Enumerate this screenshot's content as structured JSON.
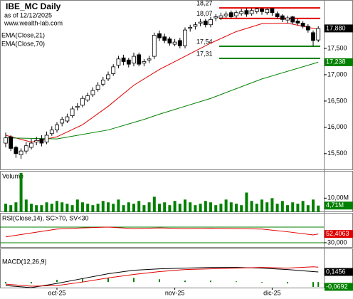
{
  "chart_data": [
    {
      "type": "candlestick",
      "title": "IBE_MC Daily",
      "subtitle": "as of 12/12/2025",
      "source": "www.wealth-lab.com",
      "open": [
        15.7,
        15.82,
        15.62,
        15.48,
        15.55,
        15.62,
        15.72,
        15.78,
        15.72,
        15.88,
        15.95,
        16.08,
        16.12,
        16.22,
        16.38,
        16.42,
        16.52,
        16.62,
        16.72,
        16.82,
        16.92,
        17.02,
        17.18,
        17.32,
        17.28,
        17.22,
        17.38,
        17.22,
        17.28,
        17.35,
        17.78,
        17.72,
        17.68,
        17.58,
        17.65,
        17.55,
        17.88,
        17.92,
        17.98,
        18.02,
        17.95,
        18.08,
        18.08,
        18.12,
        18.18,
        18.12,
        18.16,
        18.22,
        18.16,
        18.2,
        18.25,
        18.18,
        18.26,
        18.16,
        18.12,
        18.04,
        18.1,
        18.02,
        17.98,
        17.92,
        17.8,
        17.66
      ],
      "high": [
        15.9,
        15.85,
        15.65,
        15.6,
        15.72,
        15.78,
        15.82,
        15.85,
        15.92,
        16.02,
        16.1,
        16.2,
        16.26,
        16.4,
        16.46,
        16.6,
        16.66,
        16.76,
        16.86,
        16.96,
        17.06,
        17.2,
        17.36,
        17.38,
        17.32,
        17.42,
        17.42,
        17.3,
        17.36,
        17.8,
        17.84,
        17.78,
        17.72,
        17.68,
        17.7,
        17.9,
        17.95,
        18.0,
        18.06,
        18.06,
        18.1,
        18.15,
        18.18,
        18.2,
        18.22,
        18.22,
        18.25,
        18.27,
        18.26,
        18.27,
        18.27,
        18.26,
        18.27,
        18.2,
        18.15,
        18.12,
        18.12,
        18.06,
        18.02,
        17.96,
        17.84,
        17.92
      ],
      "low": [
        15.62,
        15.55,
        15.42,
        15.4,
        15.5,
        15.58,
        15.66,
        15.64,
        15.68,
        15.84,
        15.9,
        16.02,
        16.08,
        16.18,
        16.32,
        16.38,
        16.48,
        16.58,
        16.68,
        16.78,
        16.88,
        16.98,
        17.12,
        17.18,
        17.14,
        17.16,
        17.16,
        17.16,
        17.22,
        17.3,
        17.64,
        17.6,
        17.55,
        17.54,
        17.5,
        17.5,
        17.82,
        17.86,
        17.92,
        17.9,
        17.9,
        18.02,
        18.04,
        18.08,
        18.06,
        18.08,
        18.12,
        18.1,
        18.12,
        18.16,
        18.14,
        18.14,
        18.12,
        18.06,
        18.0,
        17.98,
        17.96,
        17.94,
        17.88,
        17.8,
        17.54,
        17.62
      ],
      "close": [
        15.8,
        15.6,
        15.5,
        15.55,
        15.65,
        15.7,
        15.75,
        15.7,
        15.85,
        15.95,
        16.05,
        16.15,
        16.2,
        16.35,
        16.4,
        16.55,
        16.6,
        16.7,
        16.8,
        16.9,
        17.0,
        17.15,
        17.3,
        17.25,
        17.2,
        17.35,
        17.2,
        17.25,
        17.3,
        17.75,
        17.7,
        17.65,
        17.6,
        17.62,
        17.55,
        17.85,
        17.9,
        17.95,
        18.0,
        17.95,
        18.05,
        18.1,
        18.12,
        18.15,
        18.1,
        18.18,
        18.2,
        18.15,
        18.22,
        18.25,
        18.2,
        18.24,
        18.18,
        18.1,
        18.05,
        18.08,
        18.0,
        17.98,
        17.92,
        17.85,
        17.65,
        17.88
      ],
      "xlim": [
        -1.11,
        62.08
      ],
      "xticks": [
        {
          "value": 10,
          "label": "oct-25"
        },
        {
          "value": 33,
          "label": "nov-25"
        },
        {
          "value": 52,
          "label": "dic-25"
        }
      ],
      "ylim": [
        15.2,
        18.42
      ],
      "yticks": [
        {
          "value": 15.5,
          "label": "15,500"
        },
        {
          "value": 16,
          "label": "16,000"
        },
        {
          "value": 16.5,
          "label": "16,500"
        },
        {
          "value": 17,
          "label": "17,000"
        },
        {
          "value": 17.5,
          "label": "17,500"
        }
      ],
      "series": [
        {
          "name": "EMA(Close,21)",
          "color": "#e00000",
          "x": [
            0,
            5,
            10,
            15,
            20,
            25,
            30,
            35,
            40,
            45,
            50,
            55,
            60,
            61
          ],
          "values": [
            15.85,
            15.72,
            15.82,
            16.05,
            16.4,
            16.8,
            17.1,
            17.35,
            17.6,
            17.82,
            17.97,
            17.98,
            17.88,
            17.87
          ]
        },
        {
          "name": "EMA(Close,70)",
          "color": "#008000",
          "x": [
            0,
            10,
            20,
            27,
            30,
            40,
            50,
            61
          ],
          "values": [
            15.8,
            15.78,
            15.95,
            16.15,
            16.25,
            16.55,
            16.92,
            17.238
          ]
        }
      ],
      "levels": [
        {
          "value": 18.27,
          "label": "18,27",
          "color": "#e00000"
        },
        {
          "value": 18.07,
          "label": "18,07",
          "color": "#e00000"
        },
        {
          "value": 17.54,
          "label": "17,54",
          "color": "#008000"
        },
        {
          "value": 17.31,
          "label": "17,31",
          "color": "#008000"
        }
      ],
      "last_labels": [
        {
          "value": 17.88,
          "label": "17,880",
          "color": "#000000"
        },
        {
          "value": 17.238,
          "label": "17,238",
          "color": "#008000"
        }
      ]
    },
    {
      "type": "bar",
      "title": "Volume",
      "color": "#008000",
      "values": [
        6,
        5,
        7,
        28,
        9,
        6,
        5,
        5,
        7,
        6,
        8,
        7,
        6,
        5,
        9,
        7,
        6,
        5,
        6,
        8,
        7,
        6,
        9,
        5,
        7,
        6,
        8,
        5,
        7,
        11,
        6,
        7,
        5,
        8,
        6,
        9,
        7,
        5,
        6,
        8,
        7,
        5,
        6,
        9,
        7,
        6,
        5,
        14,
        8,
        6,
        9,
        7,
        10,
        6,
        8,
        5,
        7,
        6,
        8,
        5,
        9,
        4.71
      ],
      "ylim": [
        0,
        29
      ],
      "yticks": [
        {
          "value": 10,
          "label": "10,00M"
        }
      ],
      "last_labels": [
        {
          "value": 4.71,
          "label": "4,71M",
          "color": "#008000"
        }
      ]
    },
    {
      "type": "line",
      "title": "RSI(Close,14), SC>70, SV<30",
      "series": [
        {
          "color": "#e00000",
          "x": [
            0,
            5,
            10,
            15,
            20,
            25,
            30,
            35,
            40,
            45,
            50,
            55,
            60,
            61
          ],
          "values": [
            45,
            55,
            65,
            68,
            70,
            66,
            68,
            66,
            67,
            66,
            65,
            58,
            50,
            52.4063
          ]
        }
      ],
      "levels": [
        70,
        30
      ],
      "level_color": "#008000",
      "ylim": [
        19,
        104.5
      ],
      "yticks": [
        {
          "value": 30,
          "label": "30,000"
        }
      ],
      "last_labels": [
        {
          "value": 52.4063,
          "label": "52,4063",
          "color": "#e00000"
        }
      ]
    },
    {
      "type": "macd",
      "title": "MACD(12,26,9)",
      "series": [
        {
          "color": "#000000",
          "x": [
            0,
            5,
            10,
            15,
            20,
            25,
            30,
            35,
            40,
            45,
            50,
            55,
            60,
            61
          ],
          "values": [
            -0.05,
            -0.08,
            -0.02,
            0.05,
            0.12,
            0.17,
            0.19,
            0.2,
            0.21,
            0.21,
            0.2,
            0.18,
            0.15,
            0.1456
          ]
        },
        {
          "color": "#e00000",
          "x": [
            0,
            5,
            10,
            15,
            20,
            25,
            30,
            35,
            40,
            45,
            50,
            55,
            60,
            61
          ],
          "values": [
            -0.03,
            -0.06,
            -0.05,
            0.0,
            0.06,
            0.11,
            0.15,
            0.18,
            0.19,
            0.2,
            0.21,
            0.2,
            0.22,
            0.2148
          ]
        }
      ],
      "histogram": {
        "color": "#008000",
        "x": [
          0,
          5,
          10,
          15,
          20,
          25,
          30,
          35,
          40,
          45,
          50,
          55,
          60,
          61
        ],
        "values": [
          -0.02,
          -0.02,
          0.03,
          0.05,
          0.06,
          0.06,
          0.04,
          0.02,
          0.02,
          0.01,
          -0.01,
          -0.02,
          -0.07,
          -0.0692
        ]
      },
      "ylim": [
        -0.08,
        0.473
      ],
      "last_labels": [
        {
          "value": 0.1456,
          "label": "0,1456",
          "color": "#000000"
        },
        {
          "value": -0.0692,
          "label": "-0,0692",
          "color": "#008000"
        }
      ]
    }
  ]
}
